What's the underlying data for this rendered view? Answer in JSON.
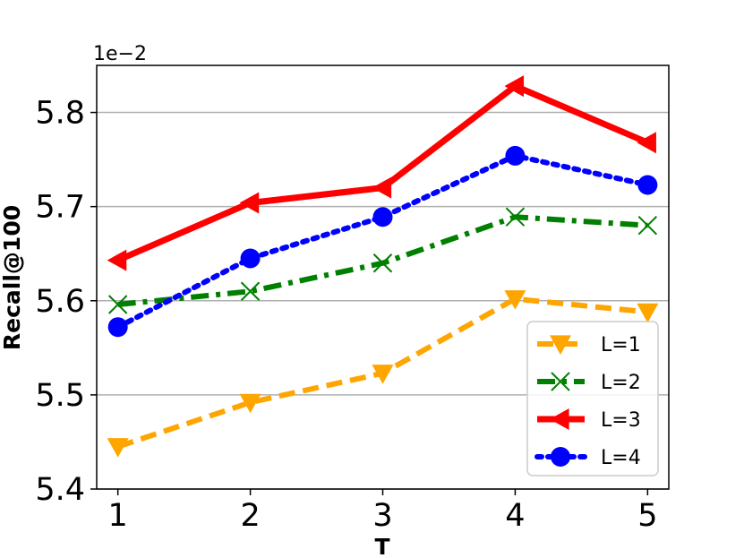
{
  "chart_data": {
    "type": "line",
    "xlabel": "T",
    "ylabel": "Recall@100",
    "y_offset_label": "1e−2",
    "x": [
      1,
      2,
      3,
      4,
      5
    ],
    "x_tick_labels": [
      "1",
      "2",
      "3",
      "4",
      "5"
    ],
    "ylim": [
      5.4,
      5.85
    ],
    "y_ticks": [
      5.4,
      5.5,
      5.6,
      5.7,
      5.8
    ],
    "y_tick_labels": [
      "5.4",
      "5.5",
      "5.6",
      "5.7",
      "5.8"
    ],
    "grid": "horizontal",
    "legend_position": "lower-right",
    "series": [
      {
        "name": "L=1",
        "values": [
          5.445,
          5.492,
          5.523,
          5.602,
          5.588
        ],
        "color": "#ffa500",
        "marker": "triangle-down",
        "line_style": "dashed"
      },
      {
        "name": "L=2",
        "values": [
          5.596,
          5.61,
          5.64,
          5.689,
          5.68
        ],
        "color": "#008000",
        "marker": "x",
        "line_style": "dash-dot"
      },
      {
        "name": "L=3",
        "values": [
          5.643,
          5.704,
          5.72,
          5.828,
          5.768
        ],
        "color": "#ff0000",
        "marker": "triangle-left",
        "line_style": "solid"
      },
      {
        "name": "L=4",
        "values": [
          5.572,
          5.645,
          5.689,
          5.754,
          5.723
        ],
        "color": "#0000ff",
        "marker": "circle",
        "line_style": "dotted"
      }
    ]
  }
}
